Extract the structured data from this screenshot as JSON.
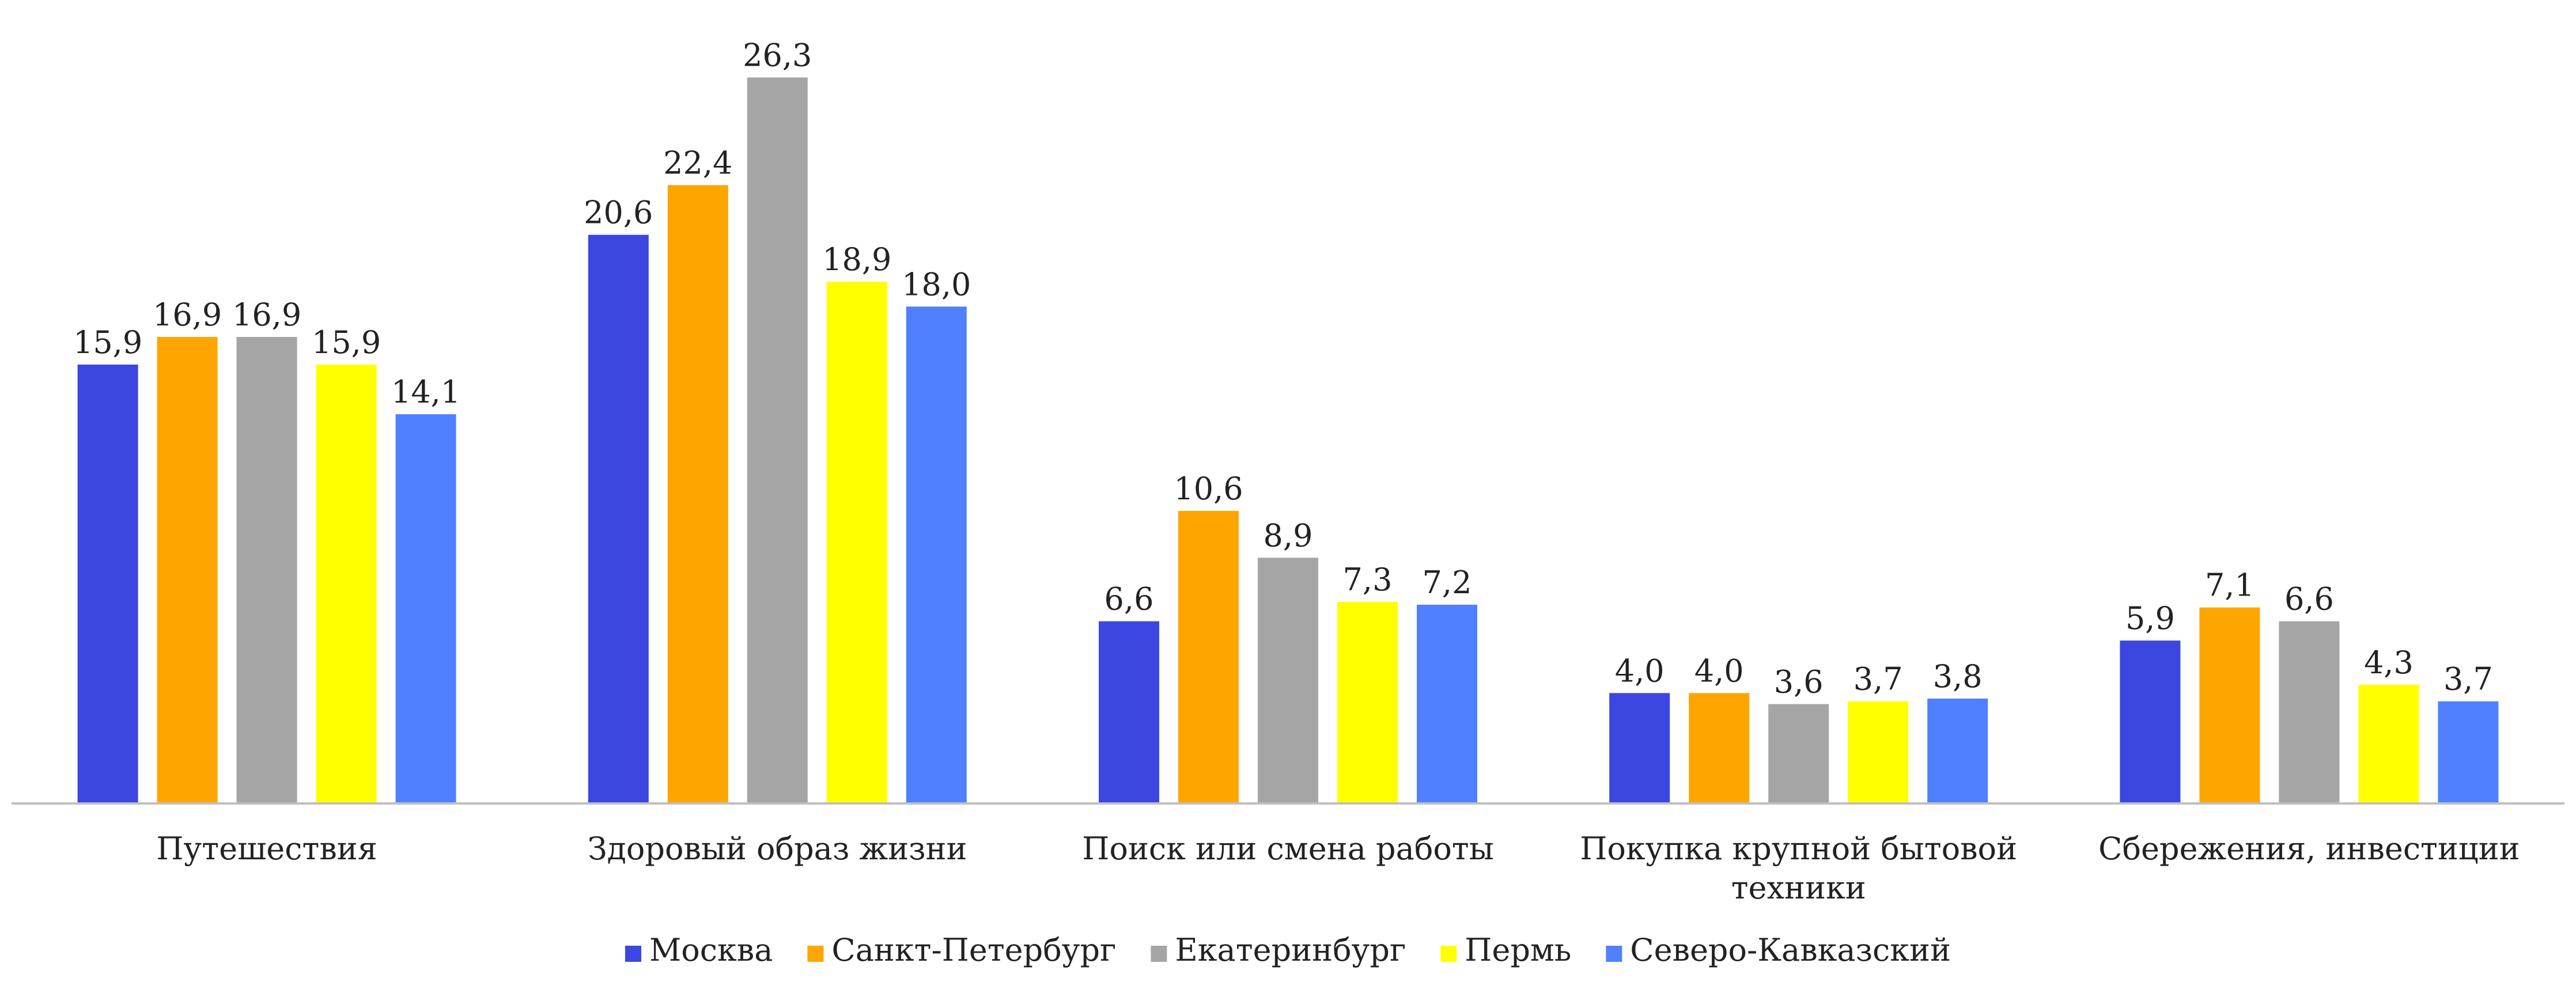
{
  "chart_data": {
    "type": "bar",
    "categories": [
      [
        "Путешествия"
      ],
      [
        "Здоровый образ жизни"
      ],
      [
        "Поиск или смена работы"
      ],
      [
        "Покупка крупной бытовой",
        "техники"
      ],
      [
        "Сбережения, инвестиции"
      ]
    ],
    "series": [
      {
        "name": "Москва",
        "color": "#3c46e0",
        "values": [
          15.9,
          20.6,
          6.6,
          4.0,
          5.9
        ]
      },
      {
        "name": "Санкт-Петербург",
        "color": "#ffa500",
        "values": [
          16.9,
          22.4,
          10.6,
          4.0,
          7.1
        ]
      },
      {
        "name": "Екатеринбург",
        "color": "#a5a5a5",
        "values": [
          16.9,
          26.3,
          8.9,
          3.6,
          6.6
        ]
      },
      {
        "name": "Пермь",
        "color": "#ffff00",
        "values": [
          15.9,
          18.9,
          7.3,
          3.7,
          4.3
        ]
      },
      {
        "name": "Северо-Кавказский",
        "color": "#5080ff",
        "values": [
          14.1,
          18.0,
          7.2,
          3.8,
          3.7
        ]
      }
    ],
    "value_labels": [
      [
        "15,9",
        "20,6",
        "6,6",
        "4,0",
        "5,9"
      ],
      [
        "16,9",
        "22,4",
        "10,6",
        "4,0",
        "7,1"
      ],
      [
        "16,9",
        "26,3",
        "8,9",
        "3,6",
        "6,6"
      ],
      [
        "15,9",
        "18,9",
        "7,3",
        "3,7",
        "4,3"
      ],
      [
        "14,1",
        "18,0",
        "7,2",
        "3,8",
        "3,7"
      ]
    ],
    "title": "",
    "xlabel": "",
    "ylabel": "",
    "ylim": [
      0,
      27.5
    ],
    "grid": false,
    "legend_position": "bottom",
    "axis_color": "#bfbfbf"
  }
}
